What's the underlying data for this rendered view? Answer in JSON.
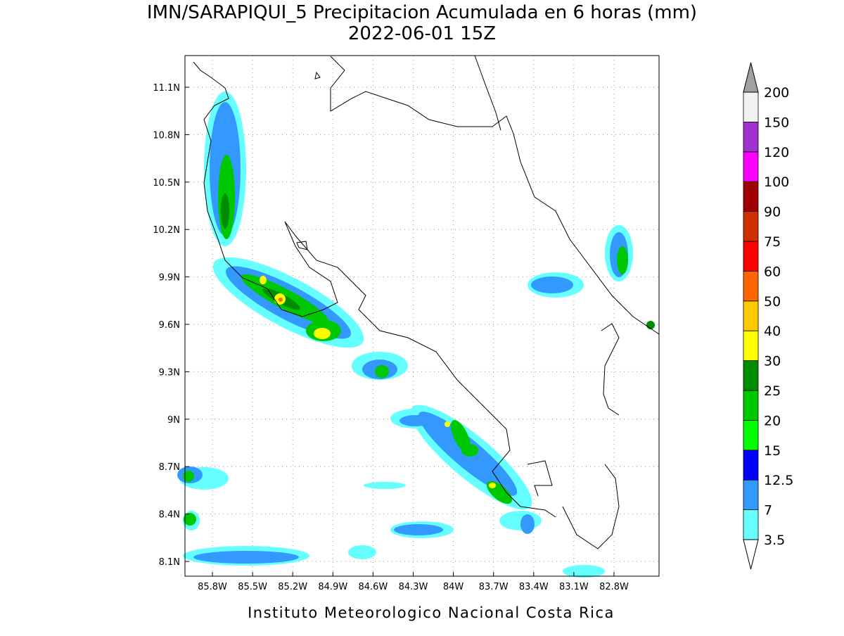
{
  "title": "IMN/SARAPIQUI_5 Precipitacion Acumulada en 6 horas (mm)",
  "subtitle": "2022-06-01 15Z",
  "footer": "Instituto Meteorologico Nacional Costa Rica",
  "lon_ticks": [
    "85.8W",
    "85.5W",
    "85.2W",
    "84.9W",
    "84.6W",
    "84.3W",
    "84W",
    "83.7W",
    "83.4W",
    "83.1W",
    "82.8W"
  ],
  "lat_ticks": [
    "11.1N",
    "10.8N",
    "10.5N",
    "10.2N",
    "9.9N",
    "9.6N",
    "9.3N",
    "9N",
    "8.7N",
    "8.4N",
    "8.1N"
  ],
  "colorbar": {
    "levels": [
      3.5,
      7,
      12.5,
      15,
      20,
      25,
      30,
      40,
      50,
      60,
      75,
      90,
      100,
      120,
      150,
      200
    ],
    "colors": [
      "#66ffff",
      "#3399ff",
      "#0000ff",
      "#00ff00",
      "#00c800",
      "#008c00",
      "#ffff00",
      "#ffc800",
      "#ff6600",
      "#ff0000",
      "#d03000",
      "#a00000",
      "#ff00ff",
      "#a030d0",
      "#f2f2f2"
    ],
    "under_color": "#ffffff",
    "over_color": "#a0a0a0"
  }
}
